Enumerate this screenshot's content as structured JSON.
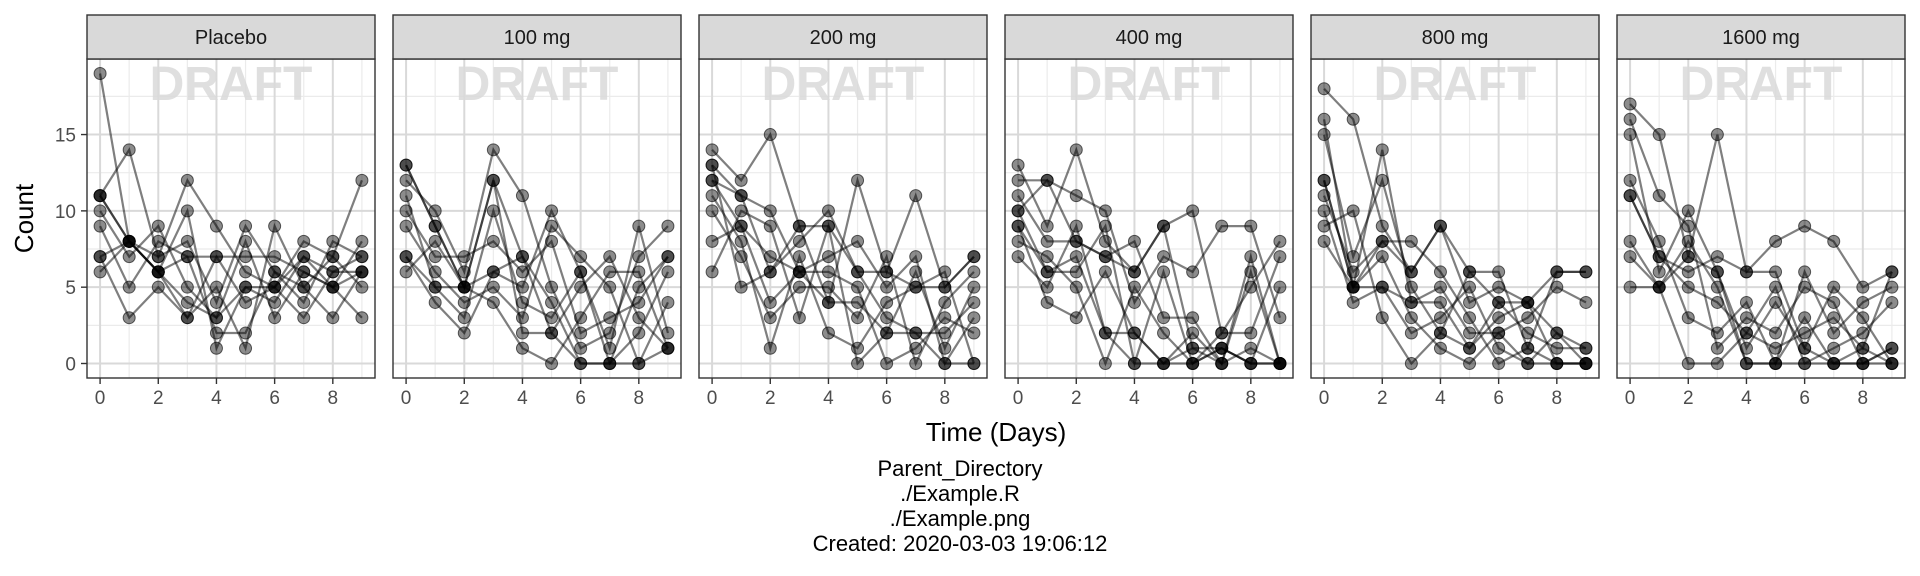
{
  "chart_data": {
    "type": "scatter",
    "watermark": "DRAFT",
    "xlabel": "Time (Days)",
    "ylabel": "Count",
    "xlim": [
      -0.45,
      9.45
    ],
    "ylim": [
      -0.95,
      19.95
    ],
    "xticks": [
      0,
      2,
      4,
      6,
      8
    ],
    "yticks": [
      0,
      5,
      10,
      15
    ],
    "grid": true,
    "panels": [
      {
        "title": "Placebo",
        "series": [
          {
            "values": [
              19,
              8,
              6,
              3,
              7,
              4,
              5,
              7,
              6,
              6
            ]
          },
          {
            "values": [
              11,
              8,
              7,
              8,
              4,
              9,
              6,
              4,
              8,
              7
            ]
          },
          {
            "values": [
              11,
              14,
              7,
              12,
              9,
              6,
              5,
              8,
              7,
              12
            ]
          },
          {
            "values": [
              10,
              7,
              9,
              5,
              3,
              8,
              3,
              6,
              5,
              3
            ]
          },
          {
            "values": [
              9,
              5,
              8,
              7,
              2,
              2,
              6,
              5,
              7,
              5
            ]
          },
          {
            "values": [
              7,
              8,
              6,
              10,
              1,
              5,
              5,
              3,
              6,
              7
            ]
          },
          {
            "values": [
              7,
              3,
              5,
              3,
              5,
              1,
              9,
              5,
              3,
              6
            ]
          },
          {
            "values": [
              6,
              8,
              6,
              4,
              3,
              5,
              4,
              7,
              5,
              8
            ]
          },
          {
            "values": [
              11,
              8,
              6,
              7,
              7,
              7,
              7,
              6,
              5,
              6
            ]
          }
        ]
      },
      {
        "title": "100 mg",
        "series": [
          {
            "values": [
              13,
              9,
              5,
              12,
              7,
              2,
              5,
              7,
              3,
              1
            ]
          },
          {
            "values": [
              12,
              10,
              6,
              14,
              11,
              5,
              1,
              2,
              7,
              9
            ]
          },
          {
            "values": [
              11,
              5,
              3,
              10,
              4,
              3,
              6,
              1,
              9,
              2
            ]
          },
          {
            "values": [
              10,
              7,
              7,
              8,
              6,
              8,
              2,
              3,
              4,
              7
            ]
          },
          {
            "values": [
              9,
              6,
              4,
              5,
              3,
              9,
              7,
              5,
              0,
              4
            ]
          },
          {
            "values": [
              7,
              4,
              2,
              6,
              5,
              10,
              6,
              0,
              2,
              6
            ]
          },
          {
            "values": [
              6,
              8,
              5,
              4,
              1,
              0,
              3,
              6,
              6,
              1
            ]
          },
          {
            "values": [
              13,
              9,
              5,
              12,
              2,
              2,
              0,
              0,
              5,
              7
            ]
          },
          {
            "values": [
              7,
              5,
              5,
              6,
              7,
              4,
              0,
              0,
              0,
              1
            ]
          }
        ]
      },
      {
        "title": "200 mg",
        "series": [
          {
            "values": [
              14,
              12,
              15,
              9,
              4,
              12,
              6,
              11,
              5,
              7
            ]
          },
          {
            "values": [
              13,
              5,
              6,
              8,
              10,
              6,
              3,
              2,
              2,
              4
            ]
          },
          {
            "values": [
              12,
              11,
              10,
              6,
              7,
              8,
              5,
              7,
              0,
              3
            ]
          },
          {
            "values": [
              11,
              8,
              1,
              7,
              2,
              1,
              4,
              5,
              6,
              0
            ]
          },
          {
            "values": [
              10,
              7,
              3,
              5,
              5,
              3,
              7,
              0,
              4,
              6
            ]
          },
          {
            "values": [
              8,
              9,
              4,
              6,
              6,
              5,
              0,
              1,
              3,
              2
            ]
          },
          {
            "values": [
              6,
              10,
              9,
              3,
              9,
              0,
              2,
              6,
              1,
              5
            ]
          },
          {
            "values": [
              13,
              11,
              6,
              9,
              9,
              6,
              6,
              5,
              5,
              7
            ]
          },
          {
            "values": [
              12,
              9,
              7,
              6,
              4,
              4,
              2,
              2,
              0,
              0
            ]
          }
        ]
      },
      {
        "title": "400 mg",
        "series": [
          {
            "values": [
              13,
              9,
              14,
              8,
              6,
              9,
              10,
              2,
              5,
              8
            ]
          },
          {
            "values": [
              12,
              12,
              11,
              10,
              4,
              7,
              6,
              9,
              9,
              3
            ]
          },
          {
            "values": [
              11,
              8,
              8,
              7,
              8,
              3,
              3,
              0,
              7,
              0
            ]
          },
          {
            "values": [
              10,
              6,
              6,
              9,
              0,
              6,
              0,
              2,
              2,
              7
            ]
          },
          {
            "values": [
              9,
              4,
              3,
              6,
              2,
              0,
              1,
              0,
              1,
              0
            ]
          },
          {
            "values": [
              8,
              7,
              5,
              0,
              5,
              2,
              0,
              1,
              0,
              0
            ]
          },
          {
            "values": [
              7,
              5,
              9,
              2,
              0,
              0,
              2,
              0,
              6,
              0
            ]
          },
          {
            "values": [
              10,
              12,
              8,
              7,
              6,
              9,
              1,
              1,
              0,
              0
            ]
          },
          {
            "values": [
              9,
              6,
              7,
              2,
              2,
              0,
              0,
              1,
              0,
              5
            ]
          }
        ]
      },
      {
        "title": "800 mg",
        "series": [
          {
            "values": [
              18,
              16,
              9,
              6,
              9,
              4,
              5,
              4,
              2,
              0
            ]
          },
          {
            "values": [
              16,
              5,
              14,
              4,
              5,
              2,
              2,
              3,
              5,
              4
            ]
          },
          {
            "values": [
              15,
              7,
              12,
              5,
              2,
              6,
              4,
              2,
              1,
              1
            ]
          },
          {
            "values": [
              11,
              6,
              8,
              8,
              6,
              3,
              0,
              1,
              6,
              6
            ]
          },
          {
            "values": [
              10,
              4,
              5,
              2,
              3,
              5,
              1,
              0,
              0,
              0
            ]
          },
          {
            "values": [
              9,
              10,
              3,
              0,
              2,
              1,
              3,
              4,
              0,
              0
            ]
          },
          {
            "values": [
              8,
              5,
              7,
              3,
              1,
              0,
              2,
              0,
              2,
              1
            ]
          },
          {
            "values": [
              12,
              5,
              8,
              6,
              9,
              6,
              6,
              1,
              0,
              0
            ]
          },
          {
            "values": [
              12,
              5,
              5,
              4,
              4,
              1,
              4,
              4,
              6,
              6
            ]
          }
        ]
      },
      {
        "title": "1600 mg",
        "series": [
          {
            "values": [
              17,
              15,
              7,
              15,
              6,
              8,
              9,
              8,
              5,
              6
            ]
          },
          {
            "values": [
              16,
              11,
              9,
              1,
              3,
              2,
              5,
              4,
              0,
              1
            ]
          },
          {
            "values": [
              15,
              6,
              10,
              6,
              1,
              4,
              1,
              5,
              3,
              0
            ]
          },
          {
            "values": [
              12,
              8,
              3,
              2,
              4,
              0,
              6,
              2,
              4,
              5
            ]
          },
          {
            "values": [
              11,
              7,
              5,
              4,
              2,
              5,
              0,
              1,
              2,
              4
            ]
          },
          {
            "values": [
              7,
              5,
              0,
              0,
              2,
              1,
              2,
              3,
              1,
              6
            ]
          },
          {
            "values": [
              5,
              5,
              8,
              5,
              0,
              0,
              3,
              0,
              0,
              1
            ]
          },
          {
            "values": [
              11,
              7,
              6,
              7,
              6,
              6,
              1,
              0,
              0,
              0
            ]
          },
          {
            "values": [
              8,
              5,
              7,
              6,
              0,
              0,
              0,
              0,
              1,
              0
            ]
          }
        ]
      }
    ]
  },
  "caption": {
    "line1": "Parent_Directory",
    "line2": "./Example.R",
    "line3": "./Example.png",
    "line4": "Created: 2020-03-03 19:06:12"
  }
}
